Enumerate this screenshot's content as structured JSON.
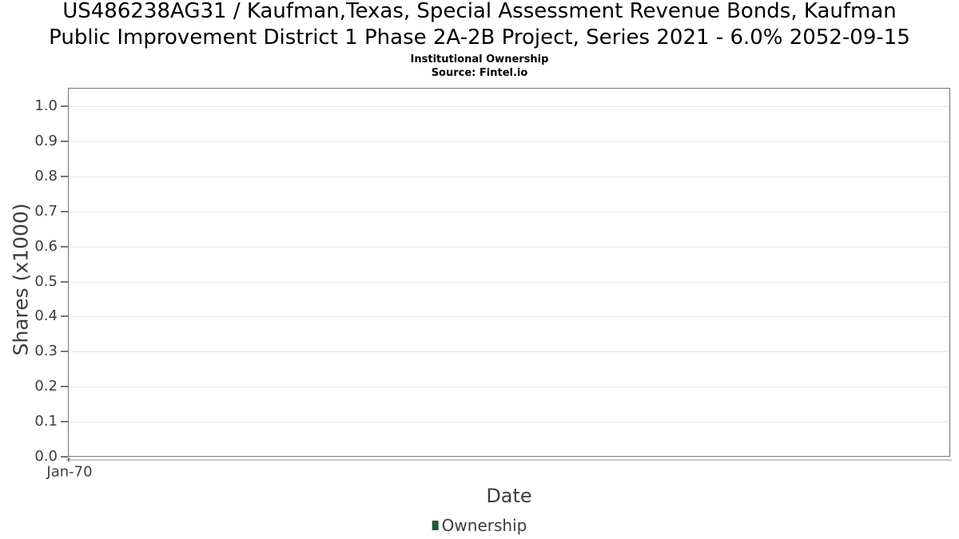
{
  "chart": {
    "title_line1": "US486238AG31 / Kaufman,Texas, Special Assessment Revenue Bonds, Kaufman",
    "title_line2": "Public Improvement District 1 Phase 2A-2B Project, Series 2021 - 6.0% 2052-09-15",
    "subtitle": "Institutional Ownership",
    "source": "Source: Fintel.io",
    "ylabel": "Shares (x1000)",
    "xlabel": "Date",
    "y_ticks": [
      "1.0",
      "0.9",
      "0.8",
      "0.7",
      "0.6",
      "0.5",
      "0.4",
      "0.3",
      "0.2",
      "0.1",
      "0.0"
    ],
    "x_ticks": [
      "Jan-70"
    ],
    "legend": {
      "label": "Ownership",
      "marker_color": "#1f5b33"
    },
    "colors": {
      "grid": "#e7e7e7",
      "border": "#757575",
      "axis_text": "#3d3d3d",
      "title_text": "#000000"
    }
  },
  "chart_data": {
    "type": "line",
    "title": "US486238AG31 / Kaufman,Texas, Special Assessment Revenue Bonds, Kaufman Public Improvement District 1 Phase 2A-2B Project, Series 2021 - 6.0% 2052-09-15",
    "subtitle": "Institutional Ownership",
    "source": "Source: Fintel.io",
    "xlabel": "Date",
    "ylabel": "Shares (x1000)",
    "ylim": [
      0.0,
      1.05
    ],
    "y_tick_values": [
      0.0,
      0.1,
      0.2,
      0.3,
      0.4,
      0.5,
      0.6,
      0.7,
      0.8,
      0.9,
      1.0
    ],
    "x_tick_labels": [
      "Jan-70"
    ],
    "grid": "horizontal",
    "legend_position": "bottom-center",
    "series": [
      {
        "name": "Ownership",
        "color": "#1f5b33",
        "x": [],
        "y": []
      }
    ]
  }
}
